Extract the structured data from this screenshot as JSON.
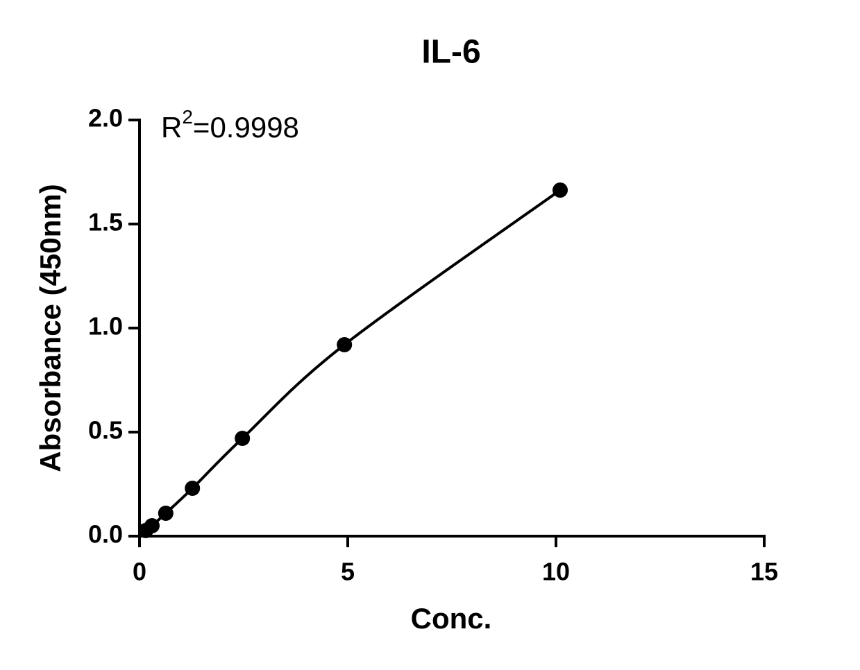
{
  "chart_data": {
    "type": "scatter",
    "title": "IL-6",
    "x_label": "Conc.",
    "y_label": "Absorbance (450nm)",
    "annotation": {
      "base": "R",
      "superscript": "2",
      "rest": "=0.9998"
    },
    "series": [
      {
        "color": "#000000",
        "x": [
          0.15,
          0.3,
          0.63,
          1.27,
          2.47,
          4.92,
          10.1
        ],
        "values": [
          0.027,
          0.05,
          0.11,
          0.23,
          0.47,
          0.92,
          1.663
        ]
      }
    ],
    "fit_curve": true,
    "xlim": [
      0,
      15
    ],
    "xticks": [
      0,
      5,
      10,
      15
    ],
    "ylim": [
      0,
      2
    ],
    "yticks": [
      {
        "value": 0,
        "label": "0.0"
      },
      {
        "value": 0.5,
        "label": "0.5"
      },
      {
        "value": 1,
        "label": "1.0"
      },
      {
        "value": 1.5,
        "label": "1.5"
      },
      {
        "value": 2,
        "label": "2.0"
      }
    ],
    "grid": false
  }
}
